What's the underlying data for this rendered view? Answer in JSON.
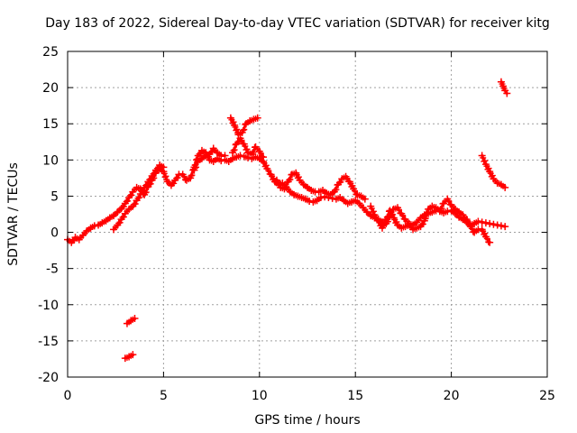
{
  "chart_data": {
    "type": "scatter",
    "title": "Day 183 of 2022, Sidereal Day-to-day VTEC variation (SDTVAR) for receiver kitg",
    "xlabel": "GPS time / hours",
    "ylabel": "SDTVAR / TECUs",
    "xlim": [
      0,
      25
    ],
    "ylim": [
      -20,
      25
    ],
    "xticks": [
      0,
      5,
      10,
      15,
      20,
      25
    ],
    "yticks": [
      -20,
      -15,
      -10,
      -5,
      0,
      5,
      10,
      15,
      20,
      25
    ],
    "grid": true,
    "legend": "none",
    "color": "#ff0000",
    "marker": "plus",
    "series": [
      {
        "name": "main-trace",
        "points": [
          [
            0.0,
            -1.0
          ],
          [
            0.2,
            -1.4
          ],
          [
            0.4,
            -0.7
          ],
          [
            0.6,
            -1.0
          ],
          [
            0.8,
            -0.4
          ],
          [
            1.0,
            0.2
          ],
          [
            1.2,
            0.6
          ],
          [
            1.4,
            0.9
          ],
          [
            1.6,
            1.0
          ],
          [
            1.8,
            1.3
          ],
          [
            2.0,
            1.6
          ],
          [
            2.2,
            2.0
          ],
          [
            2.4,
            2.3
          ],
          [
            2.6,
            2.8
          ],
          [
            2.8,
            3.3
          ],
          [
            3.0,
            4.0
          ],
          [
            3.2,
            4.8
          ],
          [
            3.4,
            5.6
          ],
          [
            3.6,
            6.2
          ],
          [
            3.8,
            6.0
          ],
          [
            4.0,
            5.2
          ],
          [
            4.2,
            6.3
          ],
          [
            4.4,
            7.2
          ],
          [
            4.6,
            8.2
          ],
          [
            4.8,
            8.8
          ],
          [
            5.0,
            8.4
          ],
          [
            5.2,
            7.0
          ],
          [
            5.4,
            6.5
          ],
          [
            5.6,
            7.2
          ],
          [
            5.8,
            8.0
          ],
          [
            6.0,
            8.0
          ],
          [
            6.2,
            7.2
          ],
          [
            6.4,
            7.5
          ],
          [
            6.6,
            9.0
          ],
          [
            6.8,
            10.6
          ],
          [
            7.0,
            11.3
          ],
          [
            7.2,
            11.0
          ],
          [
            7.4,
            10.0
          ],
          [
            7.6,
            9.8
          ],
          [
            7.8,
            10.2
          ],
          [
            8.0,
            9.9
          ],
          [
            8.2,
            10.0
          ],
          [
            8.4,
            9.8
          ],
          [
            8.6,
            10.2
          ],
          [
            8.8,
            10.4
          ],
          [
            9.0,
            10.6
          ],
          [
            9.2,
            10.5
          ],
          [
            9.4,
            10.3
          ],
          [
            9.6,
            10.2
          ],
          [
            9.8,
            10.4
          ],
          [
            10.0,
            10.2
          ],
          [
            10.2,
            9.8
          ],
          [
            10.4,
            8.8
          ],
          [
            10.6,
            8.0
          ],
          [
            10.8,
            7.0
          ],
          [
            11.0,
            6.6
          ],
          [
            11.2,
            6.8
          ],
          [
            11.4,
            6.2
          ],
          [
            11.6,
            5.6
          ],
          [
            11.8,
            5.2
          ],
          [
            12.0,
            5.0
          ],
          [
            12.2,
            4.8
          ],
          [
            12.4,
            4.6
          ],
          [
            12.6,
            4.3
          ],
          [
            12.8,
            4.2
          ],
          [
            13.0,
            4.4
          ],
          [
            13.2,
            4.8
          ],
          [
            13.4,
            4.9
          ],
          [
            13.6,
            4.8
          ],
          [
            13.8,
            4.7
          ],
          [
            14.0,
            4.6
          ],
          [
            14.2,
            4.8
          ],
          [
            14.4,
            4.4
          ],
          [
            14.6,
            4.0
          ],
          [
            14.8,
            4.2
          ],
          [
            15.0,
            4.4
          ],
          [
            15.2,
            4.0
          ],
          [
            15.4,
            3.4
          ],
          [
            15.6,
            2.8
          ],
          [
            15.8,
            2.3
          ],
          [
            16.0,
            2.0
          ],
          [
            16.2,
            1.8
          ],
          [
            16.4,
            1.4
          ],
          [
            16.6,
            1.2
          ],
          [
            16.8,
            2.2
          ],
          [
            17.0,
            3.2
          ],
          [
            17.2,
            3.4
          ],
          [
            17.4,
            2.6
          ],
          [
            17.6,
            1.8
          ],
          [
            17.8,
            1.2
          ],
          [
            18.0,
            1.0
          ],
          [
            18.2,
            1.4
          ],
          [
            18.4,
            2.0
          ],
          [
            18.6,
            2.4
          ],
          [
            18.8,
            2.6
          ],
          [
            19.0,
            2.8
          ],
          [
            19.2,
            3.0
          ],
          [
            19.4,
            2.9
          ],
          [
            19.6,
            2.7
          ],
          [
            19.8,
            2.9
          ],
          [
            20.0,
            3.0
          ],
          [
            20.2,
            2.6
          ],
          [
            20.4,
            2.1
          ],
          [
            20.6,
            1.8
          ],
          [
            20.8,
            1.4
          ],
          [
            21.0,
            1.0
          ],
          [
            21.2,
            1.2
          ],
          [
            21.4,
            1.5
          ],
          [
            21.6,
            1.4
          ],
          [
            21.8,
            1.3
          ],
          [
            22.0,
            1.2
          ],
          [
            22.2,
            1.1
          ],
          [
            22.4,
            1.0
          ],
          [
            22.6,
            0.9
          ],
          [
            22.8,
            0.8
          ]
        ]
      },
      {
        "name": "peak-branch",
        "points": [
          [
            8.5,
            15.8
          ],
          [
            8.7,
            14.8
          ],
          [
            8.9,
            13.5
          ],
          [
            9.1,
            13.8
          ],
          [
            9.3,
            15.0
          ],
          [
            9.5,
            15.4
          ],
          [
            9.7,
            15.6
          ],
          [
            9.9,
            15.8
          ]
        ]
      },
      {
        "name": "cross-branch",
        "points": [
          [
            8.6,
            11.0
          ],
          [
            8.8,
            12.2
          ],
          [
            9.0,
            13.0
          ],
          [
            9.2,
            12.2
          ],
          [
            9.4,
            11.0
          ],
          [
            9.6,
            10.8
          ],
          [
            9.8,
            11.8
          ],
          [
            10.0,
            11.2
          ],
          [
            10.2,
            10.4
          ]
        ]
      },
      {
        "name": "upper-branch-a",
        "points": [
          [
            6.6,
            8.6
          ],
          [
            6.8,
            9.8
          ],
          [
            7.0,
            10.2
          ],
          [
            7.2,
            10.6
          ],
          [
            7.4,
            10.8
          ],
          [
            7.6,
            11.6
          ],
          [
            7.8,
            11.0
          ],
          [
            8.0,
            10.6
          ],
          [
            8.2,
            10.6
          ]
        ]
      },
      {
        "name": "upper-branch-b",
        "points": [
          [
            10.9,
            7.2
          ],
          [
            11.1,
            6.2
          ],
          [
            11.3,
            6.0
          ],
          [
            11.5,
            7.0
          ],
          [
            11.7,
            8.0
          ],
          [
            11.9,
            8.2
          ],
          [
            12.1,
            7.2
          ],
          [
            12.3,
            6.6
          ],
          [
            12.5,
            6.2
          ],
          [
            12.7,
            5.8
          ],
          [
            12.9,
            5.6
          ],
          [
            13.1,
            5.6
          ],
          [
            13.3,
            5.8
          ],
          [
            13.5,
            5.4
          ],
          [
            13.7,
            5.2
          ],
          [
            13.9,
            5.6
          ],
          [
            14.1,
            6.6
          ],
          [
            14.3,
            7.4
          ],
          [
            14.5,
            7.7
          ],
          [
            14.7,
            7.0
          ],
          [
            14.9,
            6.0
          ],
          [
            15.1,
            5.2
          ],
          [
            15.3,
            5.0
          ],
          [
            15.5,
            4.6
          ]
        ]
      },
      {
        "name": "lower-branch",
        "points": [
          [
            2.4,
            0.4
          ],
          [
            2.6,
            1.0
          ],
          [
            2.8,
            1.8
          ],
          [
            3.0,
            2.6
          ],
          [
            3.2,
            3.2
          ],
          [
            3.4,
            3.6
          ],
          [
            3.6,
            4.4
          ],
          [
            3.8,
            5.3
          ],
          [
            4.0,
            6.2
          ],
          [
            4.2,
            7.0
          ],
          [
            4.4,
            7.8
          ],
          [
            4.6,
            8.6
          ],
          [
            4.8,
            9.3
          ],
          [
            5.0,
            9.0
          ]
        ]
      },
      {
        "name": "late-branch",
        "points": [
          [
            15.8,
            3.6
          ],
          [
            16.0,
            2.4
          ],
          [
            16.2,
            1.6
          ],
          [
            16.4,
            0.6
          ],
          [
            16.6,
            1.8
          ],
          [
            16.8,
            3.0
          ],
          [
            17.0,
            2.0
          ],
          [
            17.2,
            1.0
          ],
          [
            17.4,
            0.6
          ],
          [
            17.6,
            0.8
          ],
          [
            17.8,
            1.0
          ],
          [
            18.0,
            0.4
          ],
          [
            18.2,
            0.6
          ],
          [
            18.4,
            0.8
          ],
          [
            18.6,
            1.6
          ],
          [
            18.8,
            3.2
          ],
          [
            19.0,
            3.6
          ],
          [
            19.2,
            3.4
          ],
          [
            19.4,
            3.0
          ],
          [
            19.6,
            4.0
          ],
          [
            19.8,
            4.6
          ],
          [
            20.0,
            3.8
          ],
          [
            20.2,
            3.2
          ],
          [
            20.4,
            2.8
          ],
          [
            20.6,
            2.4
          ],
          [
            20.8,
            1.8
          ],
          [
            21.0,
            0.8
          ],
          [
            21.2,
            0.0
          ],
          [
            21.4,
            0.4
          ],
          [
            21.6,
            0.4
          ],
          [
            21.8,
            -0.6
          ],
          [
            22.0,
            -1.4
          ]
        ]
      },
      {
        "name": "isolated-a",
        "points": [
          [
            3.1,
            -12.6
          ],
          [
            3.3,
            -12.2
          ],
          [
            3.5,
            -11.9
          ]
        ]
      },
      {
        "name": "isolated-b",
        "points": [
          [
            3.0,
            -17.4
          ],
          [
            3.2,
            -17.2
          ],
          [
            3.4,
            -16.9
          ]
        ]
      },
      {
        "name": "descending-tail",
        "points": [
          [
            21.6,
            10.6
          ],
          [
            21.8,
            9.4
          ],
          [
            22.0,
            8.4
          ],
          [
            22.2,
            7.4
          ],
          [
            22.4,
            6.8
          ],
          [
            22.6,
            6.6
          ],
          [
            22.8,
            6.2
          ]
        ]
      },
      {
        "name": "top-right-cluster",
        "points": [
          [
            22.6,
            20.8
          ],
          [
            22.7,
            20.2
          ],
          [
            22.8,
            19.6
          ],
          [
            22.9,
            19.2
          ]
        ]
      }
    ]
  }
}
